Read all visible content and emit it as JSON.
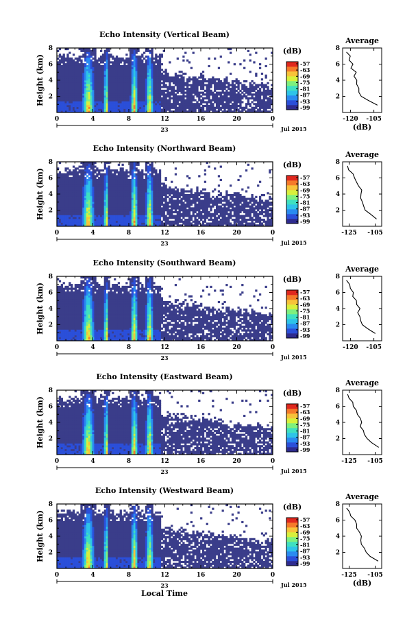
{
  "chart_data": [
    {
      "type": "heatmap",
      "title": "Echo Intensity (Vertical Beam)",
      "ylabel": "Height (km)",
      "ylim": [
        0,
        8
      ],
      "xlim": [
        0,
        24
      ],
      "x_ticks": [
        "0",
        "4",
        "8",
        "12",
        "16",
        "20",
        "0"
      ],
      "y_ticks": [
        "2",
        "4",
        "6",
        "8"
      ],
      "date_tick": "23",
      "date_label": "Jul 2015",
      "colorbar": {
        "unit": "(dB)",
        "ticks": [
          "-57",
          "-63",
          "-69",
          "-75",
          "-81",
          "-87",
          "-93",
          "-99"
        ]
      },
      "profile": {
        "title": "Average",
        "xlabel": "(dB)",
        "x_ticks": [
          "-120",
          "-105"
        ],
        "xlim": [
          -125,
          -100
        ],
        "y_ticks": [
          "2",
          "4",
          "6",
          "8"
        ],
        "ylim": [
          0,
          8
        ],
        "heights": [
          0.9,
          1.5,
          2,
          2.5,
          3,
          3.5,
          4,
          4.5,
          5,
          5.5,
          6,
          6.5,
          7,
          7.5
        ],
        "values": [
          -103,
          -108,
          -113,
          -114,
          -115,
          -116,
          -116,
          -117,
          -117,
          -119,
          -119,
          -120,
          -121,
          -122
        ]
      }
    },
    {
      "type": "heatmap",
      "title": "Echo Intensity (Northward Beam)",
      "ylabel": "Height (km)",
      "ylim": [
        0,
        8
      ],
      "xlim": [
        0,
        24
      ],
      "x_ticks": [
        "0",
        "4",
        "8",
        "12",
        "16",
        "20",
        "0"
      ],
      "y_ticks": [
        "2",
        "4",
        "6",
        "8"
      ],
      "date_tick": "23",
      "date_label": "Jul 2015",
      "colorbar": {
        "unit": "(dB)",
        "ticks": [
          "-57",
          "-63",
          "-69",
          "-75",
          "-81",
          "-87",
          "-93",
          "-99"
        ]
      },
      "profile": {
        "title": "Average",
        "xlabel": "",
        "x_ticks": [
          "-125",
          "-105"
        ],
        "xlim": [
          -130,
          -100
        ],
        "y_ticks": [
          "2",
          "4",
          "6",
          "8"
        ],
        "ylim": [
          0,
          8
        ],
        "heights": [
          0.9,
          1.5,
          2,
          2.5,
          3,
          3.5,
          4,
          4.5,
          5,
          5.5,
          6,
          6.5,
          7,
          7.5
        ],
        "values": [
          -103,
          -108,
          -112,
          -114,
          -115,
          -117,
          -115,
          -116,
          -118,
          -120,
          -121,
          -123,
          -125,
          -126
        ]
      }
    },
    {
      "type": "heatmap",
      "title": "Echo Intensity (Southward Beam)",
      "ylabel": "Height (km)",
      "ylim": [
        0,
        8
      ],
      "xlim": [
        0,
        24
      ],
      "x_ticks": [
        "0",
        "4",
        "8",
        "12",
        "16",
        "20",
        "0"
      ],
      "y_ticks": [
        "2",
        "4",
        "6",
        "8"
      ],
      "date_tick": "23",
      "date_label": "Jul 2015",
      "colorbar": {
        "unit": "(dB)",
        "ticks": [
          "-57",
          "-63",
          "-69",
          "-75",
          "-81",
          "-87",
          "-93",
          "-99"
        ]
      },
      "profile": {
        "title": "Average",
        "xlabel": "",
        "x_ticks": [
          "-120",
          "-105"
        ],
        "xlim": [
          -125,
          -100
        ],
        "y_ticks": [
          "2",
          "4",
          "6",
          "8"
        ],
        "ylim": [
          0,
          8
        ],
        "heights": [
          0.9,
          1.5,
          2,
          2.5,
          3,
          3.5,
          4,
          4.5,
          5,
          5.5,
          6,
          6.5,
          7,
          7.5
        ],
        "values": [
          -104,
          -108,
          -112,
          -114,
          -114,
          -115,
          -114,
          -116,
          -117,
          -118,
          -119,
          -120,
          -121,
          -122
        ]
      }
    },
    {
      "type": "heatmap",
      "title": "Echo Intensity (Eastward Beam)",
      "ylabel": "Height (km)",
      "ylim": [
        0,
        8
      ],
      "xlim": [
        0,
        24
      ],
      "x_ticks": [
        "0",
        "4",
        "8",
        "12",
        "16",
        "20",
        "0"
      ],
      "y_ticks": [
        "2",
        "4",
        "6",
        "8"
      ],
      "date_tick": "23",
      "date_label": "Jul 2015",
      "colorbar": {
        "unit": "(dB)",
        "ticks": [
          "-57",
          "-63",
          "-69",
          "-75",
          "-81",
          "-87",
          "-93",
          "-99"
        ]
      },
      "profile": {
        "title": "Average",
        "xlabel": "",
        "x_ticks": [
          "-125",
          "-105"
        ],
        "xlim": [
          -130,
          -100
        ],
        "y_ticks": [
          "2",
          "4",
          "6",
          "8"
        ],
        "ylim": [
          0,
          8
        ],
        "heights": [
          0.9,
          1.5,
          2,
          2.5,
          3,
          3.5,
          4,
          4.5,
          5,
          5.5,
          6,
          6.5,
          7,
          7.5
        ],
        "values": [
          -103,
          -108,
          -112,
          -114,
          -115,
          -116,
          -115,
          -117,
          -119,
          -120,
          -121,
          -123,
          -125,
          -126
        ]
      }
    },
    {
      "type": "heatmap",
      "title": "Echo Intensity (Westward Beam)",
      "ylabel": "Height (km)",
      "ylim": [
        0,
        8
      ],
      "xlim": [
        0,
        24
      ],
      "x_ticks": [
        "0",
        "4",
        "8",
        "12",
        "16",
        "20",
        "0"
      ],
      "y_ticks": [
        "2",
        "4",
        "6",
        "8"
      ],
      "date_tick": "23",
      "date_label": "Jul 2015",
      "xlabel": "Local Time",
      "colorbar": {
        "unit": "(dB)",
        "ticks": [
          "-57",
          "-63",
          "-69",
          "-75",
          "-81",
          "-87",
          "-93",
          "-99"
        ]
      },
      "profile": {
        "title": "Average",
        "xlabel": "(dB)",
        "x_ticks": [
          "-125",
          "-105"
        ],
        "xlim": [
          -130,
          -100
        ],
        "y_ticks": [
          "2",
          "4",
          "6",
          "8"
        ],
        "ylim": [
          0,
          8
        ],
        "heights": [
          0.9,
          1.5,
          2,
          2.5,
          3,
          3.5,
          4,
          4.5,
          5,
          5.5,
          6,
          6.5,
          7,
          7.5
        ],
        "values": [
          -103,
          -108,
          -112,
          -114,
          -115,
          -117,
          -116,
          -118,
          -119,
          -120,
          -121,
          -123,
          -125,
          -126
        ]
      }
    }
  ],
  "colors": {
    "background": "#3a3d8a",
    "colormap": [
      "#2e2b8f",
      "#2b4fd9",
      "#2a8bf0",
      "#2ec4e8",
      "#3fe0c0",
      "#7ef07e",
      "#d8f03c",
      "#f7c33a",
      "#f57a2a",
      "#e0281e"
    ]
  }
}
